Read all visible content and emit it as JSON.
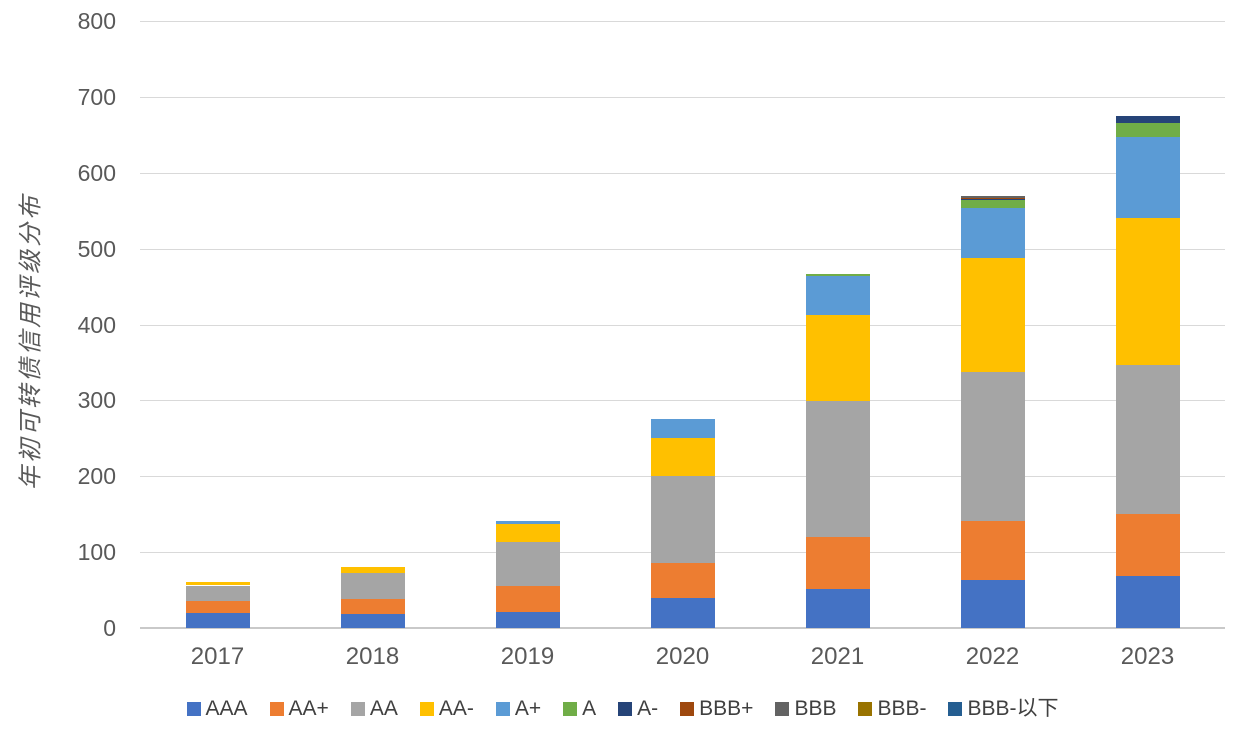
{
  "chart_data": {
    "type": "bar",
    "stacked": true,
    "title": "",
    "ylabel": "年初可转债信用评级分布",
    "xlabel": "",
    "categories": [
      "2017",
      "2018",
      "2019",
      "2020",
      "2021",
      "2022",
      "2023"
    ],
    "series": [
      {
        "name": "AAA",
        "color": "#4472C4",
        "values": [
          20,
          18,
          21,
          40,
          52,
          63,
          69
        ]
      },
      {
        "name": "AA+",
        "color": "#ED7D31",
        "values": [
          15,
          20,
          34,
          46,
          68,
          78,
          81
        ]
      },
      {
        "name": "AA",
        "color": "#A5A5A5",
        "values": [
          21,
          35,
          58,
          114,
          179,
          196,
          196
        ]
      },
      {
        "name": "AA-",
        "color": "#FFC000",
        "values": [
          5,
          7,
          24,
          51,
          114,
          150,
          195
        ]
      },
      {
        "name": "A+",
        "color": "#5B9BD5",
        "values": [
          0,
          0,
          4,
          25,
          51,
          67,
          106
        ]
      },
      {
        "name": "A",
        "color": "#70AD47",
        "values": [
          0,
          0,
          0,
          0,
          3,
          10,
          19
        ]
      },
      {
        "name": "A-",
        "color": "#264478",
        "values": [
          0,
          0,
          0,
          0,
          0,
          1,
          9
        ]
      },
      {
        "name": "BBB+",
        "color": "#9E480E",
        "values": [
          0,
          0,
          0,
          0,
          0,
          2,
          0
        ]
      },
      {
        "name": "BBB",
        "color": "#636363",
        "values": [
          0,
          0,
          0,
          0,
          0,
          3,
          0
        ]
      },
      {
        "name": "BBB-",
        "color": "#997300",
        "values": [
          0,
          0,
          0,
          0,
          0,
          0,
          0
        ]
      },
      {
        "name": "BBB-以下",
        "color": "#255E91",
        "values": [
          0,
          0,
          0,
          0,
          0,
          0,
          0
        ]
      }
    ],
    "totals": [
      61,
      80,
      141,
      276,
      467,
      570,
      675
    ],
    "ylim": [
      0,
      800
    ],
    "ytick_step": 100,
    "yticks": [
      0,
      100,
      200,
      300,
      400,
      500,
      600,
      700,
      800
    ],
    "grid": true,
    "legend_position": "bottom",
    "colors": {
      "gridline": "#d9d9d9",
      "axis_text": "#595959",
      "legend_text": "#404040",
      "background": "#ffffff"
    }
  }
}
